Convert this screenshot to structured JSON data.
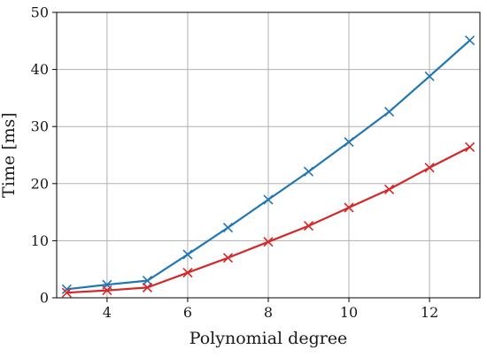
{
  "chart_data": {
    "type": "line",
    "xlabel": "Polynomial degree",
    "ylabel": "Time [ms]",
    "xlim": [
      2.75,
      13.25
    ],
    "ylim": [
      0,
      50
    ],
    "xticks": [
      4,
      6,
      8,
      10,
      12
    ],
    "yticks": [
      0,
      10,
      20,
      30,
      40,
      50
    ],
    "grid": true,
    "x": [
      3,
      4,
      5,
      6,
      7,
      8,
      9,
      10,
      11,
      12,
      13
    ],
    "series": [
      {
        "color": "#1f77b4",
        "marker": "x",
        "values": [
          1.5,
          2.3,
          3.0,
          7.6,
          12.3,
          17.2,
          22.1,
          27.3,
          32.6,
          38.8,
          45.1
        ]
      },
      {
        "color": "#d62728",
        "marker": "x",
        "values": [
          0.9,
          1.3,
          1.8,
          4.4,
          7.0,
          9.8,
          12.6,
          15.8,
          19.0,
          22.8,
          26.4
        ]
      }
    ]
  }
}
